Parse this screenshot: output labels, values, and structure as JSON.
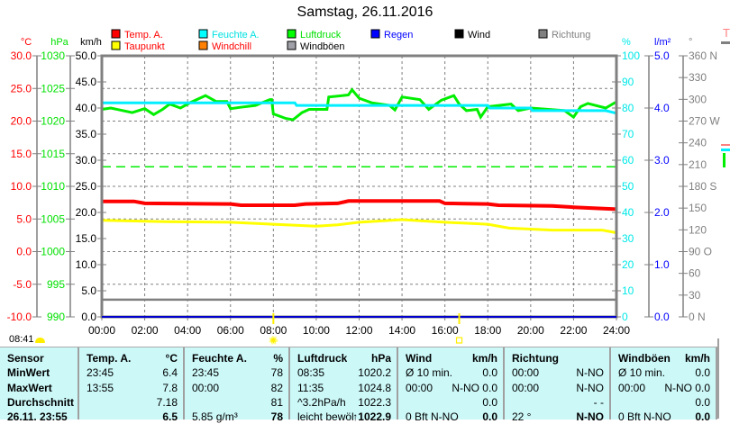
{
  "title": "Samstag, 26.11.2016",
  "clock": "08:41",
  "legend": [
    {
      "label": "Temp. A.",
      "color": "#ff0000",
      "text_color": "#ff0000"
    },
    {
      "label": "Feuchte A.",
      "color": "#00ffff",
      "text_color": "#00e0e0"
    },
    {
      "label": "Luftdruck",
      "color": "#00ff00",
      "text_color": "#00e000"
    },
    {
      "label": "Regen",
      "color": "#0000ff",
      "text_color": "#0000ff"
    },
    {
      "label": "Wind",
      "color": "#000000",
      "text_color": "#000000"
    },
    {
      "label": "Richtung",
      "color": "#808080",
      "text_color": "#808080"
    },
    {
      "label": "Taupunkt",
      "color": "#ffff00",
      "text_color": "#ff0000"
    },
    {
      "label": "Windchill",
      "color": "#ff8000",
      "text_color": "#ff0000"
    },
    {
      "label": "Windböen",
      "color": "#a0a0a8",
      "text_color": "#000000"
    }
  ],
  "chart_data": {
    "type": "line",
    "title": "Samstag, 26.11.2016",
    "grid": true,
    "x": {
      "ticks": [
        "00:00",
        "02:00",
        "04:00",
        "06:00",
        "08:00",
        "10:00",
        "12:00",
        "14:00",
        "16:00",
        "18:00",
        "20:00",
        "22:00",
        "24:00"
      ],
      "range": [
        "00:00",
        "24:00"
      ]
    },
    "axes": [
      {
        "unit": "°C",
        "color": "#ff0000",
        "range": [
          -10,
          30
        ],
        "ticks": [
          "30.0",
          "25.0",
          "20.0",
          "15.0",
          "10.0",
          "5.0",
          "0.0",
          "-5.0",
          "-10.0"
        ]
      },
      {
        "unit": "hPa",
        "color": "#00e000",
        "range": [
          990,
          1030
        ],
        "ticks": [
          "1030",
          "1025",
          "1020",
          "1015",
          "1010",
          "1005",
          "1000",
          "995",
          "990"
        ]
      },
      {
        "unit": "km/h",
        "color": "#000000",
        "range": [
          0,
          50
        ],
        "ticks": [
          "50.0",
          "45.0",
          "40.0",
          "35.0",
          "30.0",
          "25.0",
          "20.0",
          "15.0",
          "10.0",
          "5.0",
          "0.0"
        ]
      },
      {
        "unit": "%",
        "color": "#00e8e8",
        "range": [
          0,
          100
        ],
        "ticks": [
          "100",
          "90",
          "80",
          "70",
          "60",
          "50",
          "40",
          "30",
          "20",
          "10",
          "0"
        ]
      },
      {
        "unit": "l/m²",
        "color": "#0000ff",
        "range": [
          0,
          5
        ],
        "ticks": [
          "5.0",
          "4.0",
          "3.0",
          "2.0",
          "1.0",
          "0.0"
        ]
      },
      {
        "unit": "°",
        "color": "#808080",
        "range": [
          0,
          360
        ],
        "ticks": [
          "360 N",
          "330",
          "300",
          "270 W",
          "240",
          "210",
          "180 S",
          "150",
          "120",
          "90  O",
          "60",
          "30",
          "0    N"
        ]
      }
    ],
    "series": [
      {
        "name": "Luftdruck",
        "axis": "hPa",
        "color": "#00ee00",
        "points": [
          [
            "00:00",
            1021.8
          ],
          [
            "00:25",
            1022.0
          ],
          [
            "01:25",
            1021.3
          ],
          [
            "02:00",
            1021.9
          ],
          [
            "02:25",
            1021.0
          ],
          [
            "02:50",
            1021.8
          ],
          [
            "03:10",
            1022.6
          ],
          [
            "03:40",
            1022.0
          ],
          [
            "04:10",
            1022.9
          ],
          [
            "04:50",
            1023.9
          ],
          [
            "05:20",
            1023.0
          ],
          [
            "05:50",
            1023.0
          ],
          [
            "06:00",
            1021.9
          ],
          [
            "06:25",
            1022.1
          ],
          [
            "07:10",
            1022.4
          ],
          [
            "07:50",
            1023.3
          ],
          [
            "07:55",
            1023.3
          ],
          [
            "08:00",
            1021.1
          ],
          [
            "08:35",
            1020.4
          ],
          [
            "08:55",
            1020.2
          ],
          [
            "09:20",
            1021.3
          ],
          [
            "09:40",
            1021.8
          ],
          [
            "10:30",
            1021.8
          ],
          [
            "10:35",
            1023.7
          ],
          [
            "11:30",
            1024.0
          ],
          [
            "11:40",
            1024.8
          ],
          [
            "12:00",
            1023.5
          ],
          [
            "12:35",
            1022.8
          ],
          [
            "13:25",
            1022.4
          ],
          [
            "13:40",
            1021.7
          ],
          [
            "14:00",
            1023.7
          ],
          [
            "14:50",
            1023.3
          ],
          [
            "15:15",
            1021.8
          ],
          [
            "15:50",
            1023.2
          ],
          [
            "16:25",
            1023.9
          ],
          [
            "16:40",
            1022.6
          ],
          [
            "17:00",
            1021.6
          ],
          [
            "17:30",
            1021.8
          ],
          [
            "17:40",
            1020.6
          ],
          [
            "18:00",
            1022.2
          ],
          [
            "19:05",
            1022.6
          ],
          [
            "19:25",
            1021.6
          ],
          [
            "20:00",
            1022.0
          ],
          [
            "21:35",
            1021.6
          ],
          [
            "22:00",
            1020.6
          ],
          [
            "22:20",
            1022.2
          ],
          [
            "22:40",
            1022.7
          ],
          [
            "23:30",
            1022.0
          ],
          [
            "23:55",
            1022.8
          ],
          [
            "24:00",
            1022.9
          ]
        ]
      },
      {
        "name": "Feuchte A.",
        "axis": "%",
        "color": "#00eeff",
        "points": [
          [
            "00:00",
            82
          ],
          [
            "09:00",
            82
          ],
          [
            "09:05",
            81
          ],
          [
            "18:00",
            81
          ],
          [
            "18:05",
            80
          ],
          [
            "20:00",
            80
          ],
          [
            "20:05",
            79
          ],
          [
            "23:30",
            79
          ],
          [
            "24:00",
            78
          ]
        ]
      },
      {
        "name": "Temp. A.",
        "axis": "°C",
        "color": "#ff0000",
        "points": [
          [
            "00:00",
            7.7
          ],
          [
            "01:30",
            7.7
          ],
          [
            "02:00",
            7.4
          ],
          [
            "06:00",
            7.3
          ],
          [
            "06:30",
            7.1
          ],
          [
            "09:00",
            7.1
          ],
          [
            "09:30",
            7.3
          ],
          [
            "11:00",
            7.4
          ],
          [
            "11:30",
            7.75
          ],
          [
            "15:45",
            7.75
          ],
          [
            "16:00",
            7.4
          ],
          [
            "18:00",
            7.3
          ],
          [
            "18:30",
            7.1
          ],
          [
            "21:00",
            7.0
          ],
          [
            "22:00",
            6.8
          ],
          [
            "24:00",
            6.5
          ]
        ]
      },
      {
        "name": "Taupunkt",
        "axis": "°C",
        "color": "#ffff00",
        "points": [
          [
            "00:00",
            4.8
          ],
          [
            "03:00",
            4.6
          ],
          [
            "06:00",
            4.5
          ],
          [
            "08:00",
            4.2
          ],
          [
            "10:00",
            3.9
          ],
          [
            "11:00",
            4.1
          ],
          [
            "12:00",
            4.5
          ],
          [
            "14:00",
            4.9
          ],
          [
            "16:00",
            4.5
          ],
          [
            "18:00",
            4.2
          ],
          [
            "19:00",
            3.6
          ],
          [
            "21:00",
            3.3
          ],
          [
            "23:20",
            3.3
          ],
          [
            "24:00",
            2.9
          ]
        ]
      },
      {
        "name": "Regen",
        "axis": "l/m²",
        "color": "#0000cc",
        "points": [
          [
            "00:00",
            0
          ],
          [
            "24:00",
            0
          ]
        ]
      }
    ],
    "reference_lines": [
      {
        "axis": "hPa",
        "value": 1013,
        "color": "#00ee00",
        "style": "dashed"
      },
      {
        "axis": "km/h",
        "value": 3.3,
        "color": "#808080",
        "style": "solid"
      }
    ],
    "sunrise": "08:00",
    "sunset": "16:40"
  },
  "table": {
    "columns": [
      {
        "title": "Sensor",
        "unit": ""
      },
      {
        "title": "Temp. A.",
        "unit": "°C"
      },
      {
        "title": "Feuchte A.",
        "unit": "%"
      },
      {
        "title": "Luftdruck",
        "unit": "hPa"
      },
      {
        "title": "Wind",
        "unit": "km/h"
      },
      {
        "title": "Richtung",
        "unit": ""
      },
      {
        "title": "Windböen",
        "unit": "km/h"
      }
    ],
    "rows": [
      {
        "label": "MinWert",
        "cells": [
          [
            "23:45",
            "6.4"
          ],
          [
            "23:45",
            "78"
          ],
          [
            "08:35",
            "1020.2"
          ],
          [
            "Ø 10 min.",
            "0.0"
          ],
          [
            "00:00",
            "N-NO"
          ],
          [
            "Ø 10 min.",
            "0.0"
          ]
        ]
      },
      {
        "label": "MaxWert",
        "cells": [
          [
            "13:55",
            "7.8"
          ],
          [
            "00:00",
            "82"
          ],
          [
            "11:35",
            "1024.8"
          ],
          [
            "00:00",
            "N-NO 0.0"
          ],
          [
            "00:00",
            "N-NO"
          ],
          [
            "00:00",
            "N-NO 0.0"
          ]
        ]
      },
      {
        "label": "Durchschnitt",
        "cells": [
          [
            "",
            "7.18"
          ],
          [
            "",
            "81"
          ],
          [
            "^3.2hPa/h",
            "1022.3"
          ],
          [
            "",
            "0.0"
          ],
          [
            "",
            "- -"
          ],
          [
            "",
            "0.0"
          ]
        ]
      },
      {
        "label": "26.11. 23:55",
        "cells": [
          [
            "",
            "6.5"
          ],
          [
            "5.85 g/m³",
            "78"
          ],
          [
            "leicht bewöl",
            "↑1022.9"
          ],
          [
            "0 Bft N-NO",
            "0.0"
          ],
          [
            "22 °",
            "N-NO"
          ],
          [
            "0 Bft N-NO",
            "0.0"
          ]
        ]
      }
    ]
  },
  "side_panel": {
    "label": "T"
  }
}
